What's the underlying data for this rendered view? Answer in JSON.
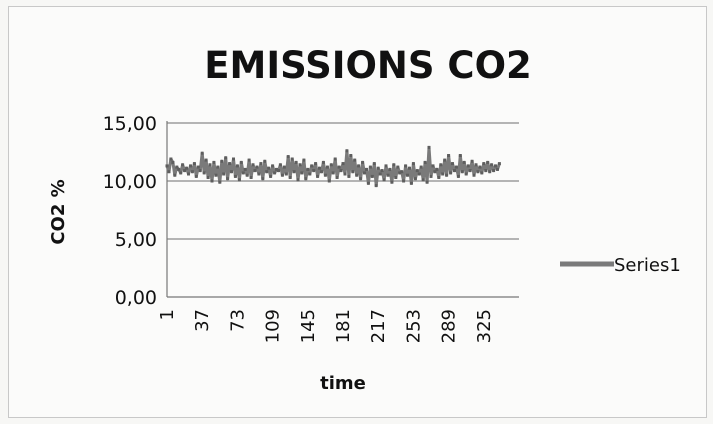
{
  "chart_data": {
    "type": "line",
    "title": "EMISSIONS CO2",
    "xlabel": "time",
    "ylabel": "CO2 %",
    "ylim": [
      0,
      15
    ],
    "xlim": [
      1,
      361
    ],
    "y_ticks": [
      "0,00",
      "5,00",
      "10,00",
      "15,00"
    ],
    "y_tick_values": [
      0,
      5,
      10,
      15
    ],
    "x_ticks": [
      "1",
      "37",
      "73",
      "109",
      "145",
      "181",
      "217",
      "253",
      "289",
      "325"
    ],
    "x_tick_values": [
      1,
      37,
      73,
      109,
      145,
      181,
      217,
      253,
      289,
      325
    ],
    "grid": "horizontal",
    "legend_position": "right",
    "series": [
      {
        "name": "Series1",
        "color": "#7a7a7a",
        "x_start": 1,
        "x_step": 2,
        "values": [
          11.3,
          10.8,
          11.9,
          11.6,
          10.5,
          11.2,
          11.0,
          10.7,
          11.4,
          10.9,
          11.1,
          10.6,
          11.3,
          10.8,
          11.5,
          10.4,
          11.2,
          10.9,
          12.4,
          10.7,
          11.8,
          10.3,
          11.4,
          10.0,
          11.6,
          10.5,
          11.2,
          9.9,
          11.7,
          10.6,
          12.0,
          10.2,
          11.5,
          10.8,
          11.9,
          10.4,
          11.3,
          10.1,
          11.6,
          10.7,
          11.0,
          10.5,
          11.8,
          10.3,
          11.4,
          10.9,
          11.2,
          10.6,
          11.5,
          10.2,
          11.7,
          10.8,
          11.1,
          10.4,
          11.3,
          10.7,
          11.0,
          10.9,
          11.4,
          10.5,
          11.2,
          10.6,
          12.1,
          10.3,
          11.9,
          10.8,
          11.6,
          10.1,
          11.4,
          10.7,
          11.8,
          10.2,
          11.0,
          10.6,
          11.3,
          10.9,
          11.5,
          10.4,
          11.1,
          10.8,
          11.6,
          10.5,
          11.2,
          10.0,
          11.4,
          10.7,
          11.9,
          10.3,
          11.2,
          10.9,
          11.5,
          10.6,
          12.6,
          10.4,
          12.2,
          10.8,
          11.8,
          10.5,
          11.3,
          10.2,
          11.6,
          10.7,
          11.0,
          9.8,
          11.2,
          10.4,
          11.5,
          9.6,
          11.1,
          10.6,
          10.9,
          10.1,
          11.3,
          10.5,
          11.0,
          9.9,
          11.4,
          10.3,
          11.2,
          10.7,
          10.8,
          10.0,
          11.3,
          10.5,
          11.1,
          9.8,
          11.5,
          10.2,
          10.9,
          10.6,
          11.2,
          10.1,
          11.6,
          9.9,
          12.9,
          10.4,
          11.3,
          10.8,
          11.0,
          10.3,
          11.4,
          10.6,
          11.8,
          10.5,
          12.2,
          10.7,
          11.5,
          10.9,
          11.2,
          10.4,
          12.2,
          10.8,
          11.6,
          10.6,
          11.3,
          10.9,
          11.7,
          10.5,
          11.4,
          10.8,
          11.2,
          10.7,
          11.5,
          10.9,
          11.6,
          10.8,
          11.4,
          10.9,
          11.3,
          11.0,
          11.5
        ]
      }
    ]
  }
}
